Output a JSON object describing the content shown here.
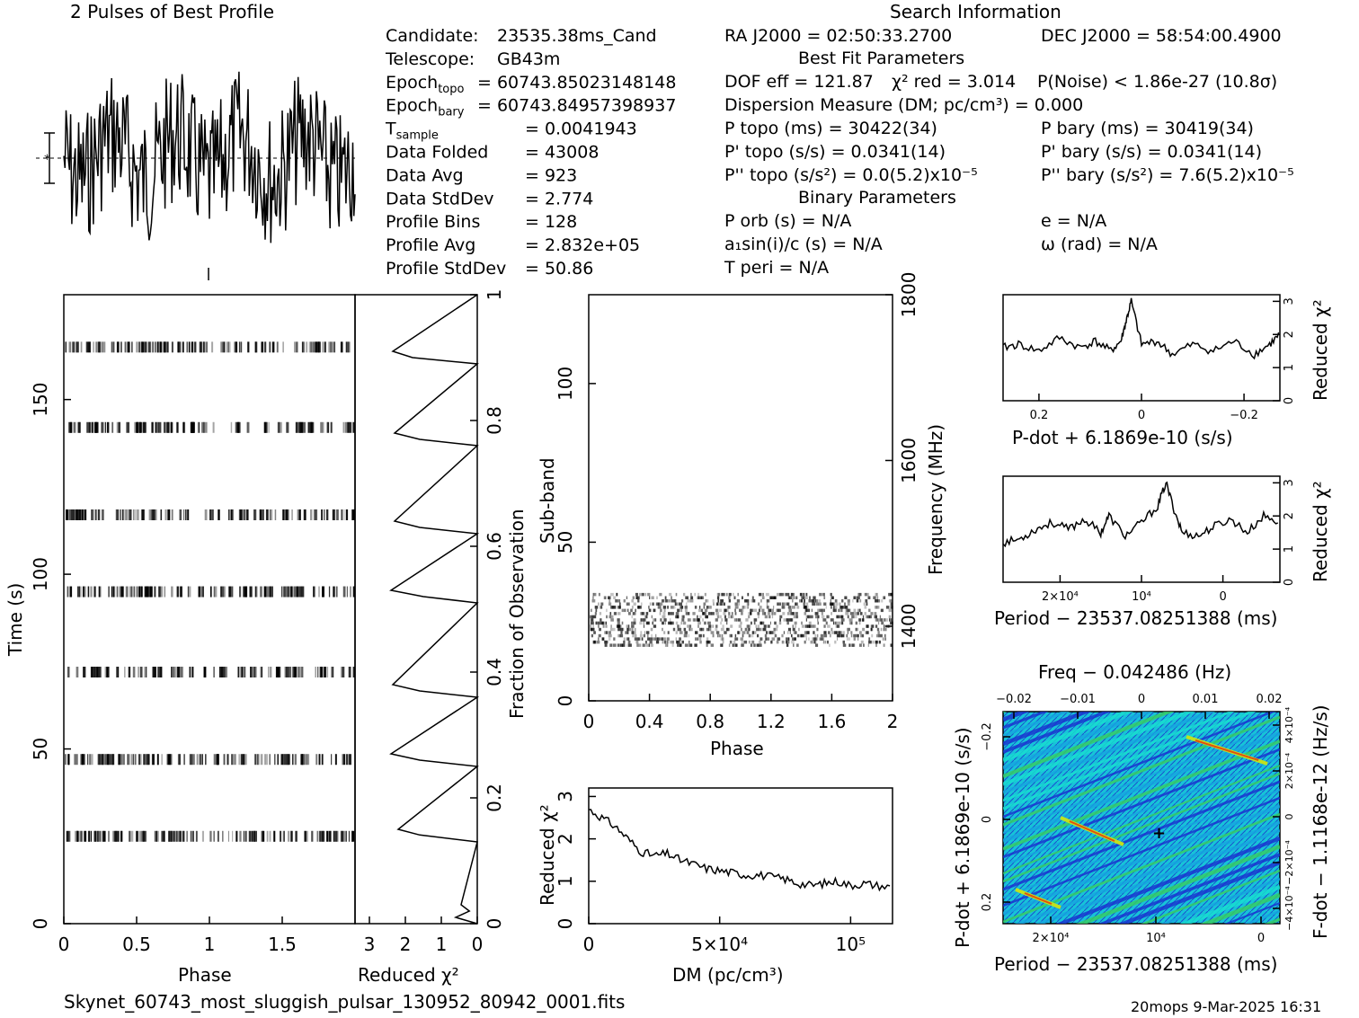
{
  "header": {
    "profile_title": "2 Pulses of Best Profile",
    "search_title": "Search Information",
    "filename": "Skynet_60743_most_sluggish_pulsar_130952_80942_0001.fits",
    "footer_right": "20mops  9-Mar-2025 16:31"
  },
  "info_left": [
    {
      "label": "Candidate:",
      "value": "23535.38ms_Cand"
    },
    {
      "label": "Telescope:",
      "value": "GB43m"
    },
    {
      "label": "Epoch",
      "sub": "topo",
      "value": "= 60743.85023148148"
    },
    {
      "label": "Epoch",
      "sub": "bary",
      "value": "= 60743.84957398937"
    },
    {
      "label": "T",
      "sub": "sample",
      "value": "=   0.0041943"
    },
    {
      "label": "Data Folded",
      "value": "=   43008"
    },
    {
      "label": "Data Avg",
      "value": "=   923"
    },
    {
      "label": "Data StdDev",
      "value": "=   2.774"
    },
    {
      "label": "Profile Bins",
      "value": "=   128"
    },
    {
      "label": "Profile Avg",
      "value": "=   2.832e+05"
    },
    {
      "label": "Profile StdDev",
      "value": "=   50.86"
    }
  ],
  "info_mid": {
    "ra": "RA J2000 = 02:50:33.2700",
    "dec": "DEC J2000 = 58:54:00.4900",
    "best_fit_title": "Best Fit Parameters",
    "dof": "DOF eff = 121.87",
    "chi2": "χ² red = 3.014",
    "noise": "P(Noise) < 1.86e-27   (10.8σ)",
    "dm": "Dispersion Measure (DM; pc/cm³) = 0.000",
    "p_topo": "P topo (ms) =  30422(34)",
    "p_bary": "P bary (ms) =  30419(34)",
    "pd_topo": "P' topo (s/s) =  0.0341(14)",
    "pd_bary": "P' bary (s/s) =  0.0341(14)",
    "pdd_topo": "P'' topo (s/s²) = 0.0(5.2)x10⁻⁵",
    "pdd_bary": "P'' bary (s/s²) =  7.6(5.2)x10⁻⁵",
    "binary_title": "Binary Parameters",
    "porb": "P orb (s) = N/A",
    "e": "e = N/A",
    "a1": "a₁sin(i)/c (s) = N/A",
    "omega": "ω (rad) = N/A",
    "tperi": "T peri = N/A"
  },
  "chart_data": [
    {
      "id": "profile",
      "type": "line",
      "title": "2 Pulses of Best Profile",
      "xlim": [
        0,
        2
      ],
      "note": "folded pulse profile, shown twice"
    },
    {
      "id": "time-phase",
      "type": "heatmap",
      "xlabel": "Phase",
      "ylabel": "Time (s)",
      "xlim": [
        0,
        2
      ],
      "ylim": [
        0,
        180
      ],
      "x_ticks": [
        "0",
        "0.5",
        "1",
        "1.5"
      ],
      "y_ticks": [
        "0",
        "50",
        "100",
        "150"
      ],
      "band_times_s": [
        25,
        47,
        72,
        95,
        117,
        142,
        165
      ]
    },
    {
      "id": "time-chi2",
      "type": "line",
      "xlabel": "Reduced χ²",
      "ylabel": "Fraction of Observation",
      "xlim": [
        3.4,
        0
      ],
      "ylim": [
        0,
        1
      ],
      "x_ticks": [
        "3",
        "2",
        "1",
        "0"
      ],
      "y_ticks": [
        "0",
        "0.2",
        "0.4",
        "0.6",
        "0.8",
        "1"
      ],
      "points_fraction": [
        0,
        0.01,
        0.02,
        0.03,
        0.13,
        0.141,
        0.15,
        0.25,
        0.26,
        0.27,
        0.36,
        0.37,
        0.38,
        0.51,
        0.52,
        0.53,
        0.62,
        0.63,
        0.64,
        0.76,
        0.77,
        0.78,
        0.89,
        0.9,
        0.91,
        1.0
      ],
      "points_chi2": [
        0.0,
        0.6,
        0.22,
        0.45,
        0.0,
        1.6,
        2.2,
        0.0,
        1.6,
        2.4,
        0.0,
        1.6,
        2.35,
        0.0,
        1.5,
        2.4,
        0.0,
        1.6,
        2.3,
        0.0,
        1.6,
        2.3,
        0.0,
        1.8,
        2.35,
        0.0
      ]
    },
    {
      "id": "subband-phase",
      "type": "heatmap",
      "xlabel": "Phase",
      "ylabel": "Sub-band",
      "y2label": "Frequency (MHz)",
      "xlim": [
        0,
        2
      ],
      "ylim": [
        0,
        128
      ],
      "x_ticks": [
        "0",
        "0.4",
        "0.8",
        "1.2",
        "1.6",
        "2"
      ],
      "y_ticks": [
        "0",
        "50",
        "100"
      ],
      "y2_ticks": [
        "1400",
        "1600",
        "1800"
      ],
      "filled_subbands": [
        17,
        33
      ]
    },
    {
      "id": "dm-chi2",
      "type": "line",
      "xlabel": "DM (pc/cm³)",
      "ylabel": "Reduced χ²",
      "xlim": [
        0,
        116000
      ],
      "ylim": [
        0,
        3.2
      ],
      "x_ticks": [
        "0",
        "5×10⁴",
        "10⁵"
      ],
      "y_ticks": [
        "0",
        "1",
        "2",
        "3"
      ],
      "x": [
        0,
        5000,
        10000,
        15000,
        20000,
        25000,
        30000,
        35000,
        40000,
        45000,
        50000,
        55000,
        60000,
        65000,
        70000,
        75000,
        80000,
        85000,
        90000,
        95000,
        100000,
        105000,
        110000,
        116000
      ],
      "y": [
        2.7,
        2.5,
        2.3,
        2.0,
        1.7,
        1.6,
        1.65,
        1.5,
        1.4,
        1.3,
        1.25,
        1.2,
        1.15,
        1.15,
        1.1,
        1.05,
        0.95,
        0.9,
        0.95,
        1.0,
        0.9,
        0.95,
        0.9,
        0.85
      ]
    },
    {
      "id": "pdot-chi2",
      "type": "line",
      "xlabel": "P-dot + 6.1869e-10 (s/s)",
      "ylabel": "Reduced χ²",
      "xlim": [
        0.27,
        -0.27
      ],
      "ylim": [
        0,
        3.2
      ],
      "x_ticks": [
        "0.2",
        "0",
        "−0.2"
      ],
      "y_ticks": [
        "0",
        "1",
        "2",
        "3"
      ],
      "x": [
        0.27,
        0.24,
        0.2,
        0.16,
        0.12,
        0.09,
        0.06,
        0.04,
        0.03,
        0.02,
        0.0,
        -0.03,
        -0.06,
        -0.1,
        -0.14,
        -0.18,
        -0.22,
        -0.25,
        -0.27
      ],
      "y": [
        1.6,
        1.7,
        1.5,
        1.9,
        1.6,
        1.8,
        1.5,
        1.8,
        2.4,
        3.0,
        1.7,
        1.8,
        1.4,
        1.7,
        1.5,
        1.8,
        1.4,
        1.7,
        2.0
      ]
    },
    {
      "id": "period-chi2",
      "type": "line",
      "xlabel": "Period − 23537.08251388 (ms)",
      "ylabel": "Reduced χ²",
      "xlim": [
        27000,
        -7000
      ],
      "ylim": [
        0,
        3.2
      ],
      "x_ticks": [
        "2×10⁴",
        "10⁴",
        "0"
      ],
      "y_ticks": [
        "0",
        "1",
        "2",
        "3"
      ],
      "x": [
        27000,
        25000,
        23000,
        21000,
        19000,
        17000,
        15000,
        14000,
        12000,
        10000,
        8000,
        7000,
        6000,
        5000,
        3000,
        1000,
        -1000,
        -3000,
        -5000,
        -7000
      ],
      "y": [
        1.2,
        1.3,
        1.6,
        1.8,
        1.6,
        1.9,
        1.5,
        2.0,
        1.4,
        1.8,
        2.3,
        3.0,
        2.2,
        1.5,
        1.4,
        1.7,
        1.9,
        1.5,
        2.0,
        1.8
      ]
    },
    {
      "id": "period-pdot",
      "type": "heatmap",
      "title": "Freq − 0.042486 (Hz)",
      "xlabel": "Period − 23537.08251388 (ms)",
      "ylabel": "P-dot + 6.1869e-10 (s/s)",
      "y2label": "F-dot − 1.1168e-12 (Hz/s)",
      "x_ticks": [
        "2×10⁴",
        "10⁴",
        "0"
      ],
      "x2_ticks": [
        "−0.02",
        "−0.01",
        "0",
        "0.01",
        "0.02"
      ],
      "y_ticks": [
        "−0.2",
        "0",
        "0.2"
      ],
      "y2_ticks": [
        "4×10⁻⁴",
        "2×10⁻⁴",
        "0",
        "−2×10⁻⁴",
        "−4×10⁻⁴"
      ],
      "colors": [
        "#1a2fd0",
        "#16a6e0",
        "#18e0d0",
        "#38d060",
        "#c0e020",
        "#e05010"
      ]
    }
  ]
}
